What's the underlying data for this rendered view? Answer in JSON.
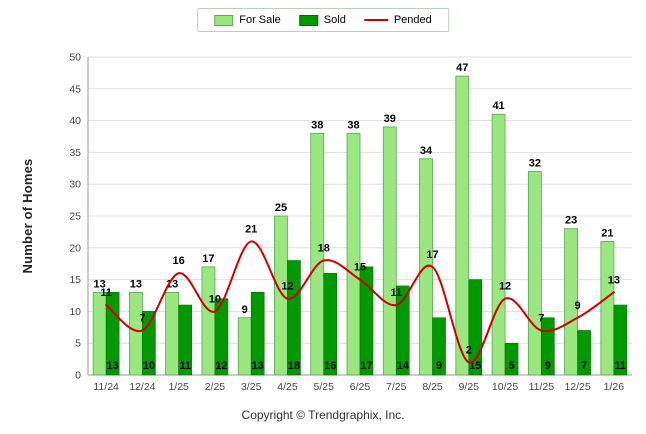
{
  "chart_data": {
    "type": "bar",
    "title": "",
    "xlabel": "",
    "ylabel": "Number of Homes",
    "ylim": [
      0,
      50
    ],
    "ytick_step": 5,
    "grid": true,
    "legend_position": "top-center",
    "categories": [
      "11/24",
      "12/24",
      "1/25",
      "2/25",
      "3/25",
      "4/25",
      "5/25",
      "6/25",
      "7/25",
      "8/25",
      "9/25",
      "10/25",
      "11/25",
      "12/25",
      "1/26"
    ],
    "series": [
      {
        "name": "For Sale",
        "type": "bar",
        "color": "#9be77f",
        "edge_color": "#58a558",
        "values": [
          13,
          13,
          13,
          17,
          9,
          25,
          38,
          38,
          39,
          34,
          47,
          41,
          32,
          23,
          21
        ]
      },
      {
        "name": "Sold",
        "type": "bar",
        "color": "#009a00",
        "edge_color": "#007300",
        "values": [
          13,
          10,
          11,
          12,
          13,
          18,
          16,
          17,
          14,
          9,
          15,
          5,
          9,
          7,
          11
        ]
      },
      {
        "name": "Pended",
        "type": "line",
        "color": "#cc0000",
        "values": [
          11,
          7,
          16,
          10,
          21,
          12,
          18,
          15,
          11,
          17,
          2,
          12,
          7,
          9,
          13
        ]
      }
    ],
    "label_color": "#000000",
    "axis_color": "#999999",
    "grid_color": "#dddddd",
    "tick_label_color": "#444444"
  },
  "footer": {
    "copyright": "Copyright © Trendgraphix, Inc."
  }
}
